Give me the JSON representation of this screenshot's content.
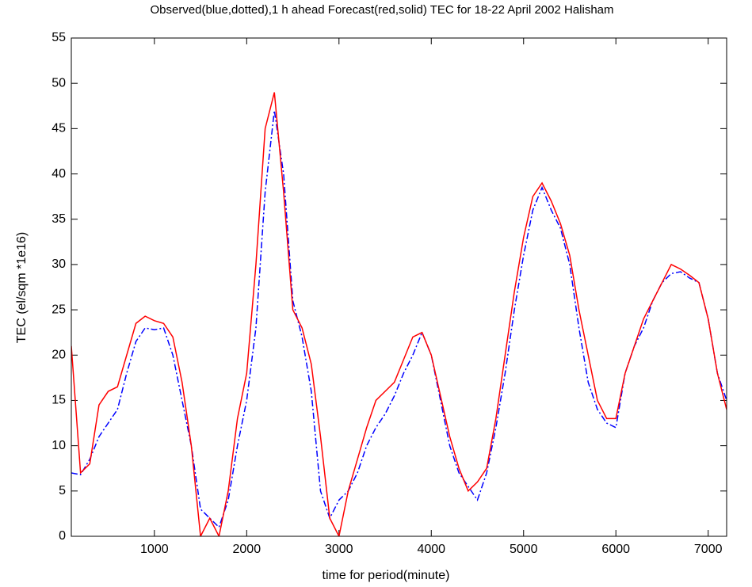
{
  "chart_data": {
    "type": "line",
    "title": "Observed(blue,dotted),1 h ahead Forecast(red,solid) TEC for 18-22 April 2002 Halisham",
    "x_label": "time for period(minute)",
    "y_label": "TEC (el/sqm *1e16)",
    "x": [
      100,
      200,
      300,
      400,
      500,
      600,
      700,
      800,
      900,
      1000,
      1100,
      1200,
      1300,
      1400,
      1500,
      1600,
      1700,
      1800,
      1900,
      2000,
      2100,
      2200,
      2300,
      2400,
      2500,
      2600,
      2700,
      2800,
      2900,
      3000,
      3100,
      3200,
      3300,
      3400,
      3500,
      3600,
      3700,
      3800,
      3900,
      4000,
      4100,
      4200,
      4300,
      4400,
      4500,
      4600,
      4700,
      4800,
      4900,
      5000,
      5100,
      5200,
      5300,
      5400,
      5500,
      5600,
      5700,
      5800,
      5900,
      6000,
      6100,
      6200,
      6300,
      6400,
      6500,
      6600,
      6700,
      6800,
      6900,
      7000,
      7100,
      7200
    ],
    "series": [
      {
        "color": "#0000ff",
        "linestyle": "dashdot",
        "values": [
          7,
          6.8,
          8.5,
          11,
          12.5,
          14,
          18,
          21.5,
          23,
          22.8,
          23,
          20,
          15,
          10,
          3,
          2,
          1,
          4,
          10,
          15,
          23,
          38,
          47,
          40,
          26,
          22,
          16,
          5,
          2,
          4,
          5,
          7,
          10,
          12,
          13.5,
          15.5,
          18,
          20,
          22.5,
          20,
          15,
          10,
          7,
          5.5,
          4,
          7,
          12,
          18,
          25,
          31,
          36,
          38.5,
          36,
          34,
          30,
          23,
          17,
          14,
          12.5,
          12,
          18,
          21,
          23,
          26,
          28,
          29,
          29.2,
          28.5,
          28,
          24,
          18,
          15
        ]
      },
      {
        "color": "#ff0000",
        "linestyle": "solid",
        "values": [
          21,
          7,
          8,
          14.5,
          16,
          16.5,
          20,
          23.5,
          24.3,
          23.8,
          23.5,
          22,
          17,
          10,
          0,
          2,
          0,
          5,
          13,
          18,
          30,
          45,
          49,
          38,
          25,
          23,
          19,
          11,
          2,
          0,
          5,
          8.5,
          12,
          15,
          16,
          17,
          19.5,
          22,
          22.5,
          20,
          15.5,
          11,
          7.5,
          5,
          6,
          7.5,
          13,
          20,
          27,
          33,
          37.5,
          39,
          37,
          34.5,
          31,
          25,
          20,
          15,
          13,
          13,
          18,
          21,
          24,
          26,
          28,
          30,
          29.5,
          28.8,
          28,
          24,
          18,
          14
        ]
      }
    ],
    "xlim": [
      100,
      7200
    ],
    "ylim": [
      0,
      55
    ],
    "xticks": [
      1000,
      2000,
      3000,
      4000,
      5000,
      6000,
      7000
    ],
    "yticks": [
      0,
      5,
      10,
      15,
      20,
      25,
      30,
      35,
      40,
      45,
      50,
      55
    ],
    "grid": false
  }
}
